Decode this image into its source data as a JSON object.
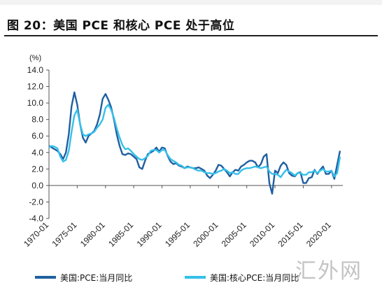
{
  "figure": {
    "title": "图 20：美国 PCE 和核心 PCE 处于高位",
    "watermark": "汇外网"
  },
  "colors": {
    "pce": "#1f5fa0",
    "core_pce": "#35c0ea",
    "axis": "#555555"
  },
  "chart_data": {
    "type": "line",
    "title": "",
    "xlabel": "",
    "ylabel": "",
    "unit_label": "(%)",
    "ylim": [
      -4.0,
      14.0
    ],
    "yticks": [
      "14.0",
      "12.0",
      "10.0",
      "8.0",
      "6.0",
      "4.0",
      "2.0",
      "0.0",
      "-2.0",
      "-4.0"
    ],
    "xlim": [
      1970.0,
      2022.0
    ],
    "xticks": [
      "1970-01",
      "1975-01",
      "1980-01",
      "1985-01",
      "1990-01",
      "1995-01",
      "2000-01",
      "2005-01",
      "2010-01",
      "2015-01",
      "2020-01"
    ],
    "grid": false,
    "legend_position": "bottom",
    "x": [
      1970.0,
      1970.5,
      1971.0,
      1971.5,
      1972.0,
      1972.5,
      1973.0,
      1973.5,
      1974.0,
      1974.5,
      1975.0,
      1975.5,
      1976.0,
      1976.5,
      1977.0,
      1977.5,
      1978.0,
      1978.5,
      1979.0,
      1979.5,
      1980.0,
      1980.5,
      1981.0,
      1981.5,
      1982.0,
      1982.5,
      1983.0,
      1983.5,
      1984.0,
      1984.5,
      1985.0,
      1985.5,
      1986.0,
      1986.5,
      1987.0,
      1987.5,
      1988.0,
      1988.5,
      1989.0,
      1989.5,
      1990.0,
      1990.5,
      1991.0,
      1991.5,
      1992.0,
      1992.5,
      1993.0,
      1993.5,
      1994.0,
      1994.5,
      1995.0,
      1995.5,
      1996.0,
      1996.5,
      1997.0,
      1997.5,
      1998.0,
      1998.5,
      1999.0,
      1999.5,
      2000.0,
      2000.5,
      2001.0,
      2001.5,
      2002.0,
      2002.5,
      2003.0,
      2003.5,
      2004.0,
      2004.5,
      2005.0,
      2005.5,
      2006.0,
      2006.5,
      2007.0,
      2007.5,
      2008.0,
      2008.5,
      2009.0,
      2009.5,
      2010.0,
      2010.5,
      2011.0,
      2011.5,
      2012.0,
      2012.5,
      2013.0,
      2013.5,
      2014.0,
      2014.5,
      2015.0,
      2015.5,
      2016.0,
      2016.5,
      2017.0,
      2017.5,
      2018.0,
      2018.5,
      2019.0,
      2019.5,
      2020.0,
      2020.5,
      2021.0,
      2021.5
    ],
    "series": [
      {
        "name": "美国:PCE:当月同比",
        "values": [
          4.8,
          4.6,
          4.4,
          4.2,
          3.8,
          3.2,
          4.0,
          6.2,
          9.6,
          11.3,
          9.8,
          7.5,
          5.8,
          5.2,
          6.0,
          6.3,
          6.6,
          7.4,
          8.6,
          10.5,
          11.1,
          10.4,
          9.5,
          8.0,
          6.2,
          4.8,
          3.8,
          3.7,
          3.9,
          3.8,
          3.5,
          3.2,
          2.2,
          2.0,
          3.0,
          3.8,
          4.0,
          4.2,
          4.6,
          4.1,
          4.6,
          4.5,
          3.6,
          2.9,
          2.6,
          2.7,
          2.4,
          2.3,
          2.1,
          2.3,
          2.2,
          2.1,
          2.1,
          2.2,
          2.0,
          1.8,
          1.2,
          0.9,
          1.3,
          1.8,
          2.5,
          2.4,
          2.0,
          1.6,
          1.1,
          1.6,
          1.9,
          1.8,
          2.3,
          2.5,
          2.8,
          3.0,
          3.0,
          2.8,
          2.2,
          2.6,
          3.5,
          3.8,
          0.3,
          -1.0,
          1.8,
          1.5,
          2.4,
          2.8,
          2.5,
          1.5,
          1.2,
          1.1,
          1.5,
          1.6,
          0.3,
          0.3,
          0.9,
          1.0,
          1.9,
          1.4,
          1.9,
          2.3,
          1.4,
          1.4,
          1.8,
          0.8,
          2.5,
          4.2
        ]
      },
      {
        "name": "美国:核心PCE:当月同比",
        "values": [
          4.6,
          4.8,
          4.7,
          4.5,
          3.5,
          2.9,
          3.1,
          4.2,
          6.5,
          8.5,
          9.2,
          7.5,
          6.2,
          6.0,
          6.2,
          6.3,
          6.5,
          7.0,
          7.4,
          8.0,
          9.4,
          9.8,
          9.2,
          8.2,
          6.9,
          5.8,
          4.9,
          4.4,
          4.5,
          4.2,
          3.8,
          3.5,
          3.2,
          3.1,
          3.3,
          3.6,
          4.2,
          4.3,
          4.3,
          4.0,
          4.3,
          4.3,
          3.7,
          3.2,
          3.0,
          2.8,
          2.5,
          2.4,
          2.1,
          2.2,
          2.2,
          2.1,
          1.9,
          1.8,
          1.8,
          1.6,
          1.5,
          1.5,
          1.4,
          1.5,
          1.7,
          1.8,
          2.0,
          1.8,
          1.5,
          1.6,
          1.4,
          1.4,
          1.8,
          2.0,
          2.1,
          2.1,
          2.2,
          2.3,
          2.2,
          2.1,
          2.2,
          2.3,
          1.7,
          1.4,
          1.4,
          1.3,
          1.0,
          1.5,
          1.9,
          1.7,
          1.5,
          1.2,
          1.5,
          1.5,
          1.3,
          1.3,
          1.6,
          1.6,
          1.8,
          1.5,
          1.8,
          2.0,
          1.7,
          1.7,
          1.8,
          1.1,
          1.5,
          3.5
        ]
      }
    ]
  }
}
